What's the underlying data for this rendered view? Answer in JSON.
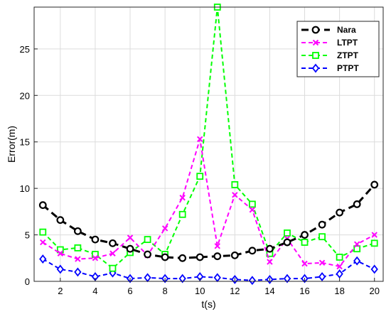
{
  "chart_data": {
    "type": "line",
    "xlabel": "t(s)",
    "ylabel": "Error(m)",
    "xlim": [
      0.5,
      20.5
    ],
    "ylim": [
      0,
      29.5
    ],
    "xticks": [
      "2",
      "4",
      "6",
      "8",
      "10",
      "12",
      "14",
      "16",
      "18",
      "20"
    ],
    "yticks": [
      "0",
      "5",
      "10",
      "15",
      "20",
      "25"
    ],
    "grid": true,
    "legend_position": "top-right",
    "x": [
      1,
      2,
      3,
      4,
      5,
      6,
      7,
      8,
      9,
      10,
      11,
      12,
      13,
      14,
      15,
      16,
      17,
      18,
      19,
      20
    ],
    "series": [
      {
        "name": "Nara",
        "color": "#000000",
        "marker": "circle",
        "values": [
          8.2,
          6.6,
          5.4,
          4.5,
          4.1,
          3.5,
          2.9,
          2.6,
          2.5,
          2.6,
          2.7,
          2.8,
          3.3,
          3.5,
          4.2,
          5.0,
          6.1,
          7.4,
          8.3,
          10.4
        ]
      },
      {
        "name": "LTPT",
        "color": "#ff00ff",
        "marker": "x",
        "values": [
          4.2,
          3.0,
          2.4,
          2.5,
          3.0,
          4.7,
          2.8,
          5.7,
          9.0,
          15.3,
          3.8,
          9.3,
          7.7,
          2.1,
          4.6,
          1.9,
          2.0,
          1.6,
          4.0,
          5.0
        ]
      },
      {
        "name": "ZTPT",
        "color": "#00ff00",
        "marker": "square",
        "values": [
          5.3,
          3.4,
          3.6,
          2.9,
          1.4,
          3.1,
          4.5,
          2.9,
          7.2,
          11.3,
          29.5,
          10.4,
          8.3,
          3.0,
          5.2,
          4.2,
          4.8,
          2.6,
          3.5,
          4.1
        ]
      },
      {
        "name": "PTPT",
        "color": "#0000ff",
        "marker": "diamond",
        "values": [
          2.4,
          1.3,
          1.0,
          0.5,
          0.9,
          0.3,
          0.4,
          0.3,
          0.3,
          0.5,
          0.4,
          0.2,
          0.1,
          0.2,
          0.3,
          0.3,
          0.5,
          0.8,
          2.2,
          1.3
        ]
      }
    ]
  }
}
